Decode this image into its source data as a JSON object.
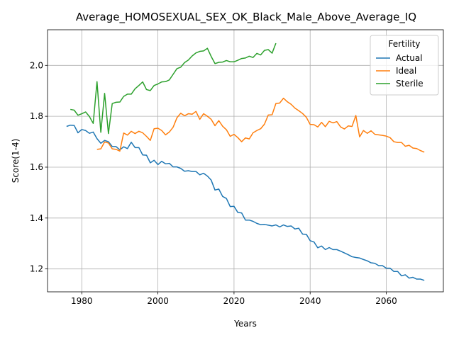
{
  "chart_data": {
    "type": "line",
    "title": "Average_HOMOSEXUAL_SEX_OK_Black_Male_Above_Average_IQ",
    "xlabel": "Years",
    "ylabel": "Score(1-4)",
    "xlim": [
      1971,
      2075
    ],
    "ylim": [
      1.11,
      2.14
    ],
    "xticks": [
      1980,
      2000,
      2020,
      2040,
      2060
    ],
    "yticks": [
      1.2,
      1.4,
      1.6,
      1.8,
      2.0
    ],
    "xtick_labels": [
      "1980",
      "2000",
      "2020",
      "2040",
      "2060"
    ],
    "ytick_labels": [
      "1.2",
      "1.4",
      "1.6",
      "1.8",
      "2.0"
    ],
    "grid": true,
    "legend": {
      "title": "Fertility",
      "placement": "top-right"
    },
    "series": [
      {
        "name": "Actual",
        "color": "#1f77b4",
        "x": [
          1976,
          1977,
          1978,
          1979,
          1980,
          1981,
          1982,
          1983,
          1984,
          1985,
          1986,
          1987,
          1988,
          1989,
          1990,
          1991,
          1992,
          1993,
          1994,
          1995,
          1996,
          1997,
          1998,
          1999,
          2000,
          2001,
          2002,
          2003,
          2004,
          2005,
          2006,
          2007,
          2008,
          2009,
          2010,
          2011,
          2012,
          2013,
          2014,
          2015,
          2016,
          2017,
          2018,
          2019,
          2020,
          2021,
          2022,
          2023,
          2024,
          2025,
          2026,
          2027,
          2028,
          2029,
          2030,
          2031,
          2032,
          2033,
          2034,
          2035,
          2036,
          2037,
          2038,
          2039,
          2040,
          2041,
          2042,
          2043,
          2044,
          2045,
          2046,
          2047,
          2048,
          2049,
          2050,
          2051,
          2052,
          2053,
          2054,
          2055,
          2056,
          2057,
          2058,
          2059,
          2060,
          2061,
          2062,
          2063,
          2064,
          2065,
          2066,
          2067,
          2068,
          2069,
          2070
        ],
        "y": [
          1.76,
          1.765,
          1.764,
          1.735,
          1.748,
          1.744,
          1.733,
          1.738,
          1.712,
          1.694,
          1.705,
          1.7,
          1.681,
          1.681,
          1.668,
          1.68,
          1.673,
          1.698,
          1.677,
          1.677,
          1.648,
          1.647,
          1.617,
          1.627,
          1.61,
          1.623,
          1.613,
          1.615,
          1.601,
          1.601,
          1.595,
          1.584,
          1.586,
          1.583,
          1.583,
          1.57,
          1.576,
          1.565,
          1.549,
          1.51,
          1.514,
          1.485,
          1.477,
          1.445,
          1.446,
          1.422,
          1.42,
          1.392,
          1.392,
          1.387,
          1.379,
          1.374,
          1.375,
          1.372,
          1.369,
          1.373,
          1.365,
          1.373,
          1.367,
          1.369,
          1.357,
          1.36,
          1.337,
          1.336,
          1.311,
          1.306,
          1.283,
          1.29,
          1.276,
          1.284,
          1.276,
          1.276,
          1.27,
          1.263,
          1.256,
          1.248,
          1.245,
          1.243,
          1.237,
          1.232,
          1.224,
          1.222,
          1.213,
          1.213,
          1.203,
          1.203,
          1.19,
          1.19,
          1.173,
          1.177,
          1.164,
          1.167,
          1.16,
          1.16,
          1.155
        ]
      },
      {
        "name": "Ideal",
        "color": "#ff7f0e",
        "x": [
          1984,
          1985,
          1986,
          1987,
          1988,
          1989,
          1990,
          1991,
          1992,
          1993,
          1994,
          1995,
          1996,
          1997,
          1998,
          1999,
          2000,
          2001,
          2002,
          2003,
          2004,
          2005,
          2006,
          2007,
          2008,
          2009,
          2010,
          2011,
          2012,
          2013,
          2014,
          2015,
          2016,
          2017,
          2018,
          2019,
          2020,
          2021,
          2022,
          2023,
          2024,
          2025,
          2026,
          2027,
          2028,
          2029,
          2030,
          2031,
          2032,
          2033,
          2034,
          2035,
          2036,
          2037,
          2038,
          2039,
          2040,
          2041,
          2042,
          2043,
          2044,
          2045,
          2046,
          2047,
          2048,
          2049,
          2050,
          2051,
          2052,
          2053,
          2054,
          2055,
          2056,
          2057,
          2058,
          2059,
          2060,
          2061,
          2062,
          2063,
          2064,
          2065,
          2066,
          2067,
          2068,
          2069,
          2070
        ],
        "y": [
          1.67,
          1.672,
          1.699,
          1.695,
          1.672,
          1.67,
          1.663,
          1.734,
          1.726,
          1.741,
          1.732,
          1.741,
          1.735,
          1.721,
          1.705,
          1.751,
          1.753,
          1.744,
          1.727,
          1.738,
          1.757,
          1.794,
          1.812,
          1.802,
          1.81,
          1.808,
          1.819,
          1.788,
          1.81,
          1.8,
          1.788,
          1.763,
          1.783,
          1.761,
          1.747,
          1.721,
          1.729,
          1.716,
          1.7,
          1.715,
          1.711,
          1.735,
          1.744,
          1.751,
          1.769,
          1.805,
          1.806,
          1.85,
          1.852,
          1.871,
          1.857,
          1.847,
          1.832,
          1.822,
          1.811,
          1.796,
          1.768,
          1.767,
          1.758,
          1.776,
          1.759,
          1.78,
          1.774,
          1.779,
          1.758,
          1.75,
          1.762,
          1.76,
          1.803,
          1.719,
          1.744,
          1.733,
          1.743,
          1.729,
          1.727,
          1.725,
          1.722,
          1.716,
          1.7,
          1.697,
          1.697,
          1.682,
          1.686,
          1.675,
          1.673,
          1.665,
          1.659
        ]
      },
      {
        "name": "Sterile",
        "color": "#2ca02c",
        "x": [
          1977,
          1978,
          1979,
          1980,
          1981,
          1982,
          1983,
          1984,
          1985,
          1986,
          1987,
          1988,
          1989,
          1990,
          1991,
          1992,
          1993,
          1994,
          1995,
          1996,
          1997,
          1998,
          1999,
          2000,
          2001,
          2002,
          2003,
          2004,
          2005,
          2006,
          2007,
          2008,
          2009,
          2010,
          2011,
          2012,
          2013,
          2014,
          2015,
          2016,
          2017,
          2018,
          2019,
          2020,
          2021,
          2022,
          2023,
          2024,
          2025,
          2026,
          2027,
          2028,
          2029,
          2030,
          2031
        ],
        "y": [
          1.827,
          1.824,
          1.804,
          1.81,
          1.817,
          1.799,
          1.772,
          1.936,
          1.737,
          1.89,
          1.732,
          1.85,
          1.855,
          1.856,
          1.878,
          1.887,
          1.887,
          1.908,
          1.921,
          1.935,
          1.905,
          1.901,
          1.921,
          1.927,
          1.935,
          1.936,
          1.943,
          1.965,
          1.987,
          1.993,
          2.011,
          2.021,
          2.037,
          2.049,
          2.055,
          2.057,
          2.067,
          2.035,
          2.007,
          2.012,
          2.013,
          2.019,
          2.014,
          2.014,
          2.02,
          2.027,
          2.029,
          2.036,
          2.031,
          2.047,
          2.041,
          2.059,
          2.062,
          2.048,
          2.087
        ]
      }
    ]
  }
}
